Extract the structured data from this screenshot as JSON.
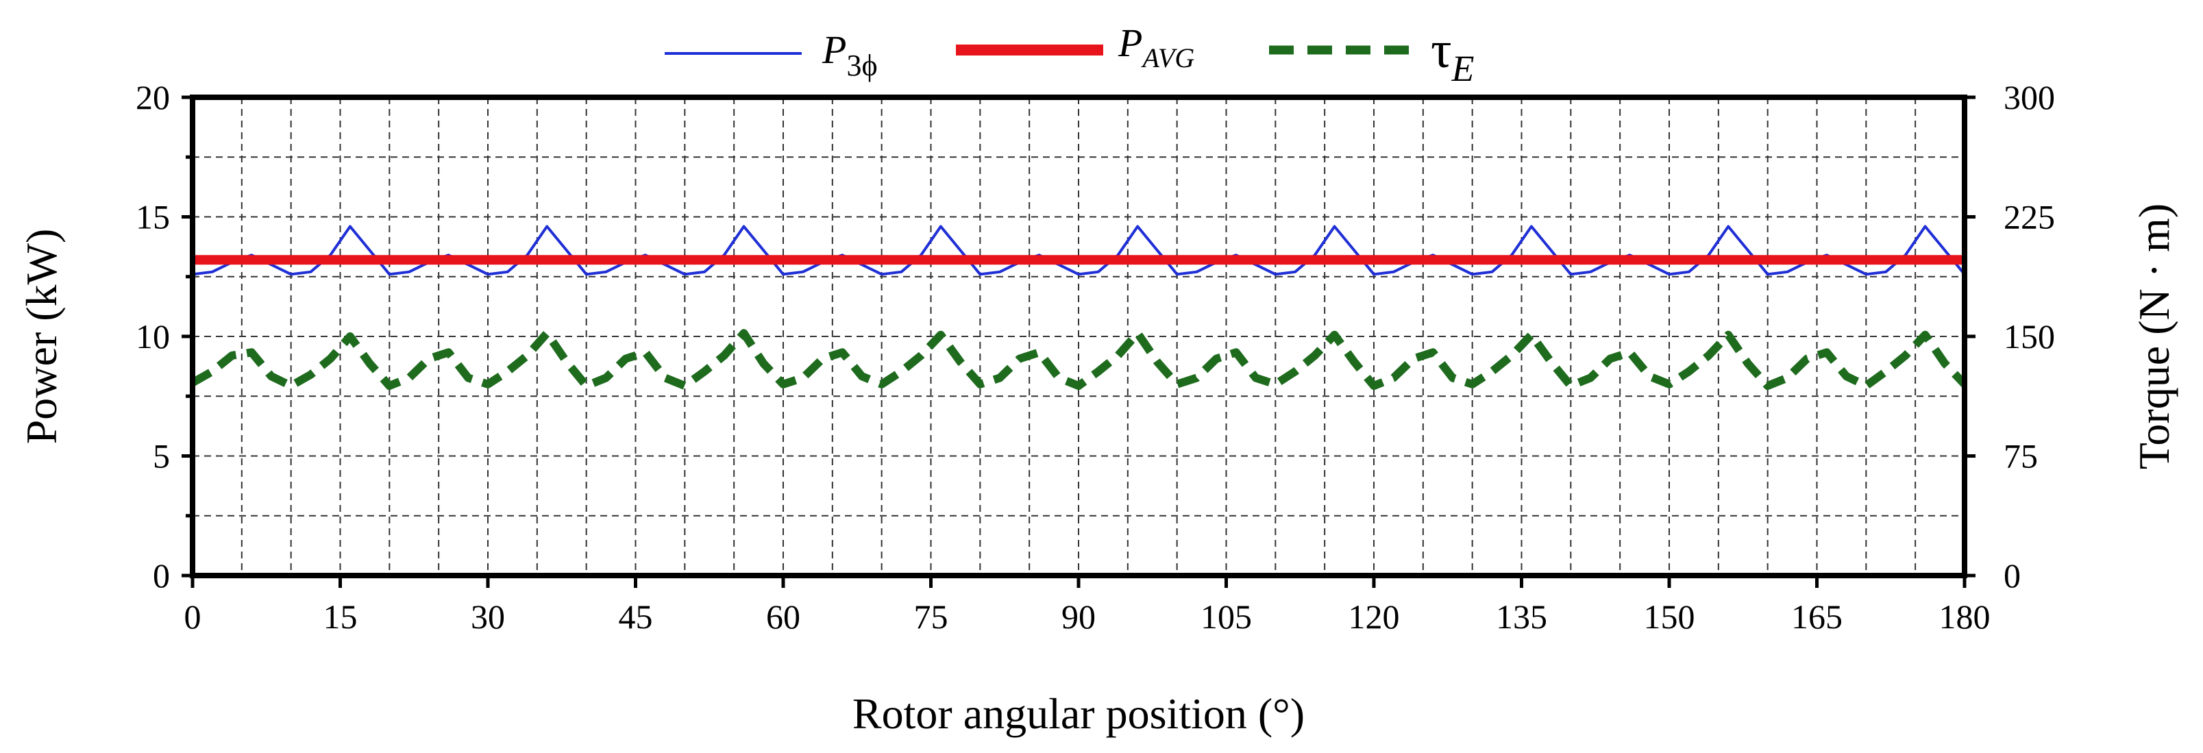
{
  "chart_data": {
    "type": "line",
    "x": [
      0,
      2,
      4,
      6,
      8,
      10,
      12,
      14,
      16,
      18,
      20,
      22,
      24,
      26,
      28,
      30,
      32,
      34,
      36,
      38,
      40,
      42,
      44,
      46,
      48,
      50,
      52,
      54,
      56,
      58,
      60,
      62,
      64,
      66,
      68,
      70,
      72,
      74,
      76,
      78,
      80,
      82,
      84,
      86,
      88,
      90,
      92,
      94,
      96,
      98,
      100,
      102,
      104,
      106,
      108,
      110,
      112,
      114,
      116,
      118,
      120,
      122,
      124,
      126,
      128,
      130,
      132,
      134,
      136,
      138,
      140,
      142,
      144,
      146,
      148,
      150,
      152,
      154,
      156,
      158,
      160,
      162,
      164,
      166,
      168,
      170,
      172,
      174,
      176,
      178,
      180
    ],
    "series": [
      {
        "name": "P_3ϕ",
        "axis": "left",
        "color": "#1f2fd6",
        "style": "solid",
        "values": [
          12.6,
          12.7,
          13.1,
          13.4,
          13.0,
          12.6,
          12.7,
          13.4,
          14.6,
          13.6,
          12.6,
          12.7,
          13.1,
          13.4,
          13.0,
          12.6,
          12.7,
          13.4,
          14.6,
          13.6,
          12.6,
          12.7,
          13.1,
          13.4,
          13.0,
          12.6,
          12.7,
          13.4,
          14.6,
          13.6,
          12.6,
          12.7,
          13.1,
          13.4,
          13.0,
          12.6,
          12.7,
          13.4,
          14.6,
          13.6,
          12.6,
          12.7,
          13.1,
          13.4,
          13.0,
          12.6,
          12.7,
          13.4,
          14.6,
          13.6,
          12.6,
          12.7,
          13.1,
          13.4,
          13.0,
          12.6,
          12.7,
          13.4,
          14.6,
          13.6,
          12.6,
          12.7,
          13.1,
          13.4,
          13.0,
          12.6,
          12.7,
          13.4,
          14.6,
          13.6,
          12.6,
          12.7,
          13.1,
          13.4,
          13.0,
          12.6,
          12.7,
          13.4,
          14.6,
          13.6,
          12.6,
          12.7,
          13.1,
          13.4,
          13.0,
          12.6,
          12.7,
          13.4,
          14.6,
          13.6,
          12.6
        ]
      },
      {
        "name": "P_AVG",
        "axis": "left",
        "color": "#e8141b",
        "style": "thick",
        "values": [
          13.2,
          13.2,
          13.2,
          13.2,
          13.2,
          13.2,
          13.2,
          13.2,
          13.2,
          13.2,
          13.2,
          13.2,
          13.2,
          13.2,
          13.2,
          13.2,
          13.2,
          13.2,
          13.2,
          13.2,
          13.2,
          13.2,
          13.2,
          13.2,
          13.2,
          13.2,
          13.2,
          13.2,
          13.2,
          13.2,
          13.2,
          13.2,
          13.2,
          13.2,
          13.2,
          13.2,
          13.2,
          13.2,
          13.2,
          13.2,
          13.2,
          13.2,
          13.2,
          13.2,
          13.2,
          13.2,
          13.2,
          13.2,
          13.2,
          13.2,
          13.2,
          13.2,
          13.2,
          13.2,
          13.2,
          13.2,
          13.2,
          13.2,
          13.2,
          13.2,
          13.2,
          13.2,
          13.2,
          13.2,
          13.2,
          13.2,
          13.2,
          13.2,
          13.2,
          13.2,
          13.2,
          13.2,
          13.2,
          13.2,
          13.2,
          13.2,
          13.2,
          13.2,
          13.2,
          13.2,
          13.2,
          13.2,
          13.2,
          13.2,
          13.2,
          13.2,
          13.2,
          13.2,
          13.2,
          13.2,
          13.2
        ]
      },
      {
        "name": "τ_E",
        "axis": "right",
        "color": "#1e6b1e",
        "style": "dashed",
        "values": [
          121,
          128,
          138,
          140,
          125,
          119,
          126,
          136,
          150,
          133,
          119,
          124,
          136,
          140,
          124,
          120,
          128,
          138,
          152,
          134,
          119,
          124,
          136,
          140,
          124,
          119,
          128,
          138,
          152,
          133,
          120,
          124,
          136,
          140,
          125,
          120,
          128,
          138,
          151,
          134,
          120,
          124,
          136,
          140,
          124,
          119,
          128,
          138,
          152,
          134,
          120,
          124,
          136,
          140,
          124,
          120,
          128,
          138,
          151,
          134,
          119,
          124,
          136,
          140,
          124,
          120,
          128,
          138,
          151,
          134,
          119,
          124,
          136,
          140,
          125,
          120,
          128,
          138,
          151,
          133,
          119,
          124,
          136,
          140,
          125,
          119,
          128,
          138,
          151,
          133,
          120
        ]
      }
    ],
    "xlabel": "Rotor angular position (°)",
    "ylabel_left": "Power (kW)",
    "ylabel_right": "Torque (N · m)",
    "xlim": [
      0,
      180
    ],
    "ylim_left": [
      0,
      20
    ],
    "ylim_right": [
      0,
      300
    ],
    "xticks": [
      0,
      15,
      30,
      45,
      60,
      75,
      90,
      105,
      120,
      135,
      150,
      165,
      180
    ],
    "yticks_left": [
      0,
      5,
      10,
      15,
      20
    ],
    "yticks_right": [
      0,
      75,
      150,
      225,
      300
    ],
    "x_grid_step": 5,
    "y_grid_step_left": 2.5,
    "grid": true,
    "legend_position": "top-center"
  },
  "legend": {
    "p3phi_main": "P",
    "p3phi_sub": "3ϕ",
    "pavg_main": "P",
    "pavg_sub": "AVG",
    "tau_main": "τ",
    "tau_sub": "E"
  }
}
